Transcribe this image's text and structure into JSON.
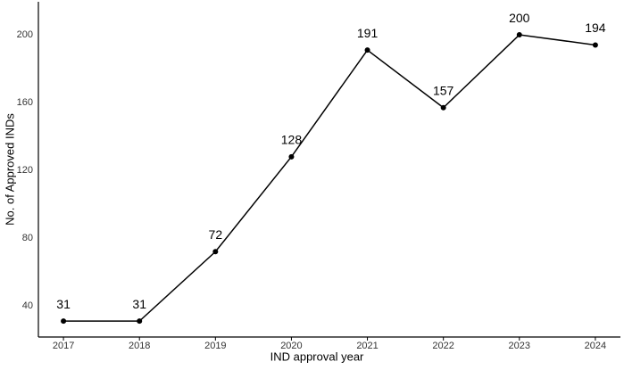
{
  "chart_data": {
    "type": "line",
    "x_label": "IND approval year",
    "y_label": "No. of Approved INDs",
    "x": [
      2017,
      2018,
      2019,
      2020,
      2021,
      2022,
      2023,
      2024
    ],
    "series": [
      {
        "name": "Approved INDs",
        "color": "#000000",
        "values": [
          31,
          31,
          72,
          128,
          191,
          157,
          200,
          194
        ]
      }
    ],
    "xlim": [
      2016.67,
      2024.33
    ],
    "xticks": [
      2017,
      2018,
      2019,
      2020,
      2021,
      2022,
      2023,
      2024
    ],
    "ylim": [
      21.6,
      219.5
    ],
    "yticks": [
      40,
      80,
      120,
      160,
      200
    ],
    "grid": false
  }
}
